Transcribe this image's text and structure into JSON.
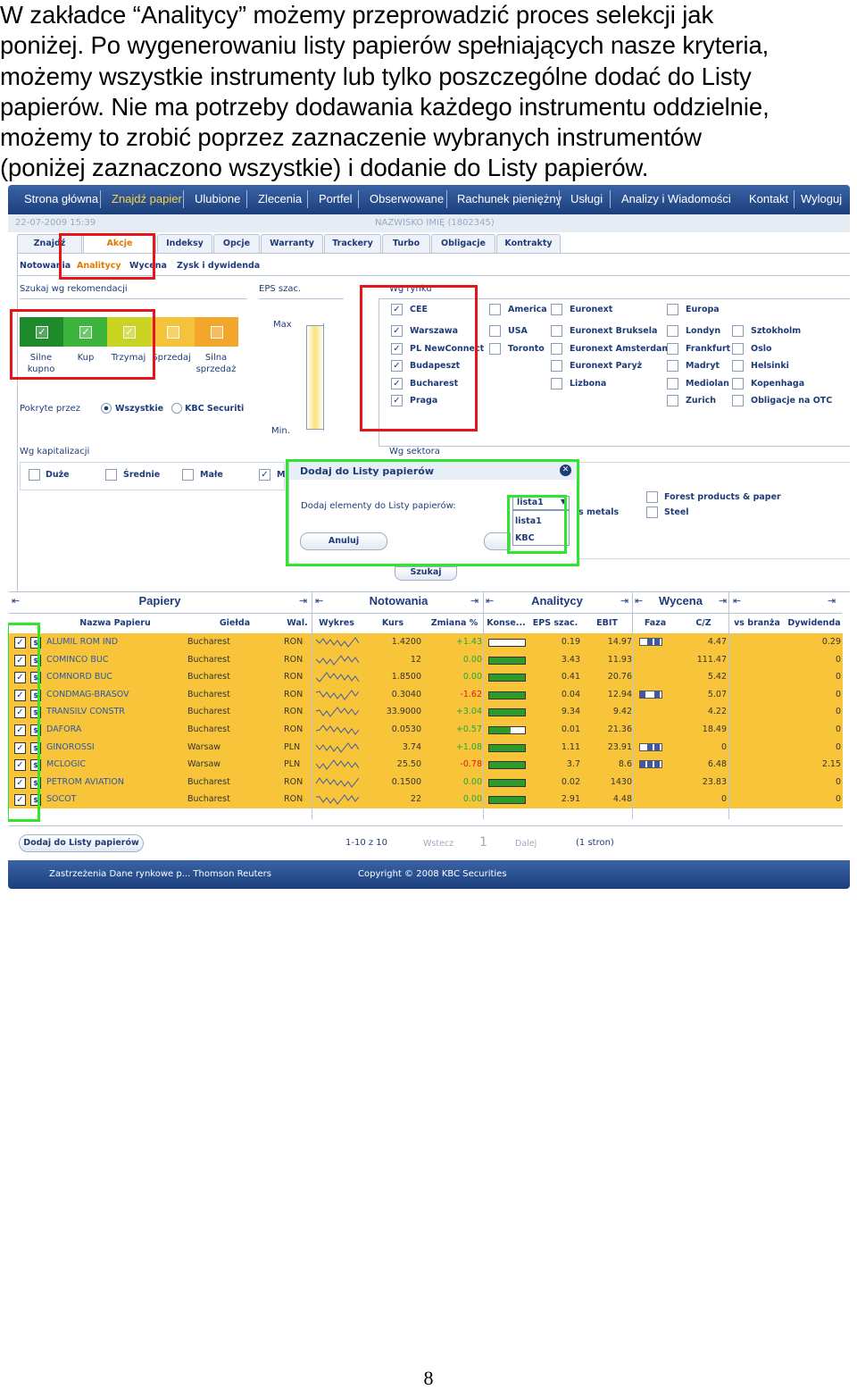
{
  "intro_lines": [
    "W zakładce “Analitycy” możemy przeprowadzić proces selekcji jak",
    "poniżej. Po wygenerowaniu listy papierów spełniających nasze kryteria,",
    "możemy wszystkie instrumenty lub tylko poszczególne dodać do Listy",
    "papierów. Nie ma potrzeby dodawania każdego instrumentu oddzielnie,",
    "możemy to zrobić poprzez zaznaczenie wybranych instrumentów",
    "(poniżej zaznaczono wszystkie) i dodanie do Listy papierów."
  ],
  "nav": [
    "Strona główna",
    "Znajdź papier",
    "Ulubione",
    "Zlecenia",
    "Portfel",
    "Obserwowane",
    "Rachunek pieniężny",
    "Usługi",
    "Analizy i Wiadomości",
    "Kontakt",
    "Wyloguj"
  ],
  "info": {
    "datetime": "22-07-2009 15:39",
    "user": "NAZWISKO IMIĘ (1802345)"
  },
  "tabs": [
    "Znajdź papier",
    "Akcje",
    "Indeksy",
    "Opcje",
    "Warranty",
    "Trackery",
    "Turbo",
    "Obligacje",
    "Kontrakty"
  ],
  "subtabs": [
    "Notowania",
    "Analitycy",
    "Wycena",
    "Zysk i dywidenda"
  ],
  "rekom": {
    "title": "Szukaj wg rekomendacji",
    "labels": [
      "Silne kupno",
      "Kup",
      "Trzymaj",
      "Sprzedaj",
      "Silna sprzedaż"
    ],
    "colors": [
      "#1f8a2b",
      "#3cb43c",
      "#c9d422",
      "#f5c33b",
      "#f3a62c"
    ],
    "pokryte": "Pokryte przez",
    "opt_all": "Wszystkie",
    "opt_kbc": "KBC Securiti"
  },
  "eps": {
    "title": "EPS szac.",
    "max": "Max",
    "min": "Min."
  },
  "rynek": {
    "title": "Wg rynku",
    "col1": [
      "CEE",
      "Warszawa",
      "PL NewConnect",
      "Budapeszt",
      "Bucharest",
      "Praga"
    ],
    "col2": [
      "America",
      "USA",
      "Toronto"
    ],
    "col3": [
      "Euronext",
      "Euronext Bruksela",
      "Euronext Amsterdam",
      "Euronext Paryż",
      "Lizbona"
    ],
    "col4": [
      "Europa",
      "Londyn",
      "Frankfurt",
      "Madryt",
      "Mediolan",
      "Zurich"
    ],
    "col5": [
      "Sztokholm",
      "Oslo",
      "Helsinki",
      "Kopenhaga",
      "Obligacje na OTC"
    ]
  },
  "kap": {
    "title": "Wg kapitalizacji",
    "items": [
      "Duże",
      "Średnie",
      "Małe",
      "M"
    ]
  },
  "sektor": {
    "title": "Wg sektora",
    "items": [
      "s metals",
      "Forest products & paper",
      "Steel"
    ]
  },
  "dialog": {
    "title": "Dodaj do Listy papierów",
    "text": "Dodaj elementy do Listy papierów:",
    "cancel": "Anuluj",
    "select": "lista1",
    "options": [
      "lista1",
      "KBC"
    ]
  },
  "szukaj": "Szukaj",
  "groups": [
    "Papiery",
    "Notowania",
    "Analitycy",
    "Wycena"
  ],
  "columns": [
    "Nazwa Papieru",
    "Giełda",
    "Wal.",
    "Wykres",
    "Kurs",
    "Zmiana %",
    "Konse...",
    "EPS szac.",
    "EBIT",
    "Faza",
    "C/Z",
    "vs branża",
    "Dywidenda"
  ],
  "rows": [
    {
      "name": "ALUMIL ROM IND",
      "exch": "Bucharest",
      "cur": "RON",
      "kurs": "1.4200",
      "chg": "+1.43",
      "konse": 0,
      "eps": "0.19",
      "ebit": "14.97",
      "faza": [
        2,
        3
      ],
      "cz": "4.47",
      "div": "0.29"
    },
    {
      "name": "COMINCO BUC",
      "exch": "Bucharest",
      "cur": "RON",
      "kurs": "12",
      "chg": "0.00",
      "konse": 1,
      "eps": "3.43",
      "ebit": "11.93",
      "faza": [],
      "cz": "111.47",
      "div": "0"
    },
    {
      "name": "COMNORD BUC",
      "exch": "Bucharest",
      "cur": "RON",
      "kurs": "1.8500",
      "chg": "0.00",
      "konse": 1,
      "eps": "0.41",
      "ebit": "20.76",
      "faza": [],
      "cz": "5.42",
      "div": "0"
    },
    {
      "name": "CONDMAG-BRASOV",
      "exch": "Bucharest",
      "cur": "RON",
      "kurs": "0.3040",
      "chg": "-1.62",
      "konse": 1,
      "eps": "0.04",
      "ebit": "12.94",
      "faza": [
        1,
        3
      ],
      "cz": "5.07",
      "div": "0"
    },
    {
      "name": "TRANSILV CONSTR",
      "exch": "Bucharest",
      "cur": "RON",
      "kurs": "33.9000",
      "chg": "+3.04",
      "konse": 1,
      "eps": "9.34",
      "ebit": "9.42",
      "faza": [],
      "cz": "4.22",
      "div": "0"
    },
    {
      "name": "DAFORA",
      "exch": "Bucharest",
      "cur": "RON",
      "kurs": "0.0530",
      "chg": "+0.57",
      "konse": 0.6,
      "eps": "0.01",
      "ebit": "21.36",
      "faza": [],
      "cz": "18.49",
      "div": "0"
    },
    {
      "name": "GINOROSSI",
      "exch": "Warsaw",
      "cur": "PLN",
      "kurs": "3.74",
      "chg": "+1.08",
      "konse": 1,
      "eps": "1.11",
      "ebit": "23.91",
      "faza": [
        2,
        3
      ],
      "cz": "0",
      "div": "0"
    },
    {
      "name": "MCLOGIC",
      "exch": "Warsaw",
      "cur": "PLN",
      "kurs": "25.50",
      "chg": "-0.78",
      "konse": 1,
      "eps": "3.7",
      "ebit": "8.6",
      "faza": [
        1,
        2,
        3
      ],
      "cz": "6.48",
      "div": "2.15"
    },
    {
      "name": "PETROM AVIATION",
      "exch": "Bucharest",
      "cur": "RON",
      "kurs": "0.1500",
      "chg": "0.00",
      "konse": 1,
      "eps": "0.02",
      "ebit": "1430",
      "faza": [],
      "cz": "23.83",
      "div": "0"
    },
    {
      "name": "SOCOT",
      "exch": "Bucharest",
      "cur": "RON",
      "kurs": "22",
      "chg": "0.00",
      "konse": 1,
      "eps": "2.91",
      "ebit": "4.48",
      "faza": [],
      "cz": "0",
      "div": "0"
    }
  ],
  "pager": {
    "add_btn": "Dodaj do Listy papierów",
    "range": "1-10 z 10",
    "prev": "Wstecz",
    "page": "1",
    "next": "Dalej",
    "total": "(1 stron)"
  },
  "footer": {
    "left": "Zastrzeżenia Dane rynkowe p... Thomson Reuters",
    "right": "Copyright © 2008 KBC Securities"
  },
  "page_number": "8"
}
